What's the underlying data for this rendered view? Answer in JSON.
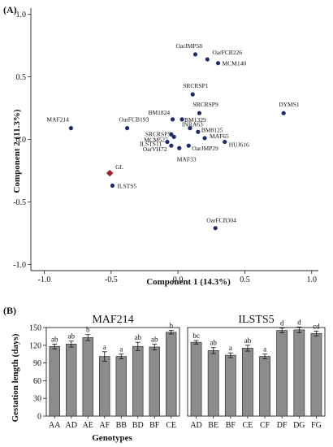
{
  "chart_data": [
    {
      "panel": "(A)",
      "type": "scatter",
      "xlabel": "Component 1 (14.3%)",
      "ylabel": "Component 2 (11.3%)",
      "xlim": [
        -1.1,
        1.05
      ],
      "ylim": [
        -1.05,
        1.05
      ],
      "xticks": [
        "-1.0",
        "-0.5",
        "0.0",
        "0.5",
        "1.0"
      ],
      "xtick_values": [
        -1.0,
        -0.5,
        0.0,
        0.5,
        1.0
      ],
      "yticks": [
        "1.0",
        "0.5",
        "0.0",
        "-0.5",
        "-1.0"
      ],
      "ytick_values": [
        1.0,
        0.5,
        0.0,
        -0.5,
        -1.0
      ],
      "colors": {
        "points": "#1f2a6e",
        "highlight": "#a12028"
      },
      "points": [
        {
          "label": "OarJMP58",
          "x": 0.13,
          "y": 0.68
        },
        {
          "label": "OarFCB226",
          "x": 0.22,
          "y": 0.64
        },
        {
          "label": "MCM140",
          "x": 0.3,
          "y": 0.61
        },
        {
          "label": "SRCRSP1",
          "x": 0.11,
          "y": 0.36
        },
        {
          "label": "SRCRSP9",
          "x": 0.16,
          "y": 0.21
        },
        {
          "label": "DYMS1",
          "x": 0.79,
          "y": 0.21
        },
        {
          "label": "BM1824",
          "x": -0.04,
          "y": 0.16
        },
        {
          "label": "BM1329",
          "x": 0.03,
          "y": 0.16
        },
        {
          "label": "MAF214",
          "x": -0.8,
          "y": 0.09
        },
        {
          "label": "OarFCB193",
          "x": -0.38,
          "y": 0.09
        },
        {
          "label": "INRA63",
          "x": 0.09,
          "y": 0.09
        },
        {
          "label": "SRCRSP5",
          "x": -0.05,
          "y": 0.04
        },
        {
          "label": "BM8125",
          "x": 0.15,
          "y": 0.06
        },
        {
          "label": "MCM527",
          "x": -0.03,
          "y": 0.02
        },
        {
          "label": "MAF65",
          "x": 0.2,
          "y": 0.01
        },
        {
          "label": "ILSTS11",
          "x": -0.08,
          "y": -0.02
        },
        {
          "label": "HUJ616",
          "x": 0.35,
          "y": -0.02
        },
        {
          "label": "OarVH72",
          "x": -0.05,
          "y": -0.05
        },
        {
          "label": "OarJMP29",
          "x": 0.08,
          "y": -0.05
        },
        {
          "label": "MAF33",
          "x": 0.01,
          "y": -0.07
        },
        {
          "label": "GL",
          "x": -0.51,
          "y": -0.27,
          "highlight": true
        },
        {
          "label": "ILSTS5",
          "x": -0.49,
          "y": -0.37
        },
        {
          "label": "OarFCB304",
          "x": 0.28,
          "y": -0.71
        }
      ]
    },
    {
      "panel": "(B)",
      "type": "bar",
      "ylabel": "Gestation length (days)",
      "xlabel": "Genotypes",
      "ylim": [
        0,
        150
      ],
      "yticks": [
        "150",
        "120",
        "90",
        "60",
        "30",
        "0"
      ],
      "ytick_values": [
        150,
        120,
        90,
        60,
        30,
        0
      ],
      "bar_color": "#8c8c8c",
      "groups": [
        {
          "title": "MAF214",
          "categories": [
            "AA",
            "AD",
            "AE",
            "AF",
            "BB",
            "BD",
            "BF",
            "CE"
          ],
          "values": [
            118,
            122,
            133,
            101,
            101,
            118,
            117,
            142
          ],
          "errors": [
            4,
            5,
            5,
            8,
            4,
            7,
            5,
            3
          ],
          "letters": [
            "ab",
            "ab",
            "b",
            "a",
            "a",
            "ab",
            "ab",
            "b"
          ]
        },
        {
          "title": "ILSTS5",
          "categories": [
            "AD",
            "BE",
            "BF",
            "CE",
            "CF",
            "DF",
            "DG",
            "FG"
          ],
          "values": [
            125,
            111,
            103,
            115,
            101,
            145,
            146,
            140
          ],
          "errors": [
            3,
            5,
            4,
            5,
            4,
            4,
            5,
            4
          ],
          "letters": [
            "bc",
            "ab",
            "a",
            "ab",
            "a",
            "d",
            "d",
            "cd"
          ]
        }
      ]
    }
  ]
}
